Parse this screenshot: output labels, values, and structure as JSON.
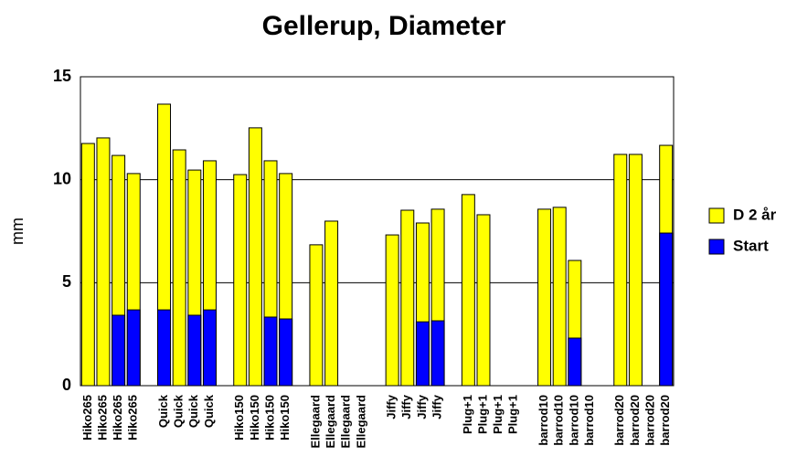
{
  "chart_data": {
    "type": "bar",
    "title": "Gellerup, Diameter",
    "y_label": "mm",
    "categories": [
      "Hiko265",
      "Hiko265",
      "Hiko265",
      "Hiko265",
      null,
      "Quick",
      "Quick",
      "Quick",
      "Quick",
      null,
      "Hiko150",
      "Hiko150",
      "Hiko150",
      "Hiko150",
      null,
      "Ellegaard",
      "Ellegaard",
      "Ellegaard",
      "Ellegaard",
      null,
      "Jiffy",
      "Jiffy",
      "Jiffy",
      "Jiffy",
      null,
      "Plug+1",
      "Plug+1",
      "Plug+1",
      "Plug+1",
      null,
      "barrod10",
      "barrod10",
      "barrod10",
      "barrod10",
      null,
      "barrod20",
      "barrod20",
      "barrod20",
      "barrod20"
    ],
    "series": [
      {
        "name": "D 2 år",
        "color": "#ffff00",
        "values": [
          11.76,
          12.03,
          11.18,
          10.3,
          null,
          13.67,
          11.45,
          10.47,
          10.92,
          null,
          10.25,
          12.52,
          10.92,
          10.3,
          null,
          6.84,
          7.99,
          null,
          null,
          null,
          7.32,
          8.52,
          7.9,
          8.57,
          null,
          9.28,
          8.3,
          null,
          null,
          null,
          8.57,
          8.66,
          6.08,
          null,
          null,
          11.23,
          11.23,
          null,
          11.67
        ]
      },
      {
        "name": "Start",
        "color": "#0000ff",
        "values": [
          null,
          null,
          3.42,
          3.68,
          null,
          3.68,
          null,
          3.42,
          3.68,
          null,
          null,
          null,
          3.33,
          3.24,
          null,
          null,
          null,
          null,
          null,
          null,
          null,
          null,
          3.1,
          3.15,
          null,
          null,
          null,
          null,
          null,
          null,
          null,
          null,
          2.31,
          null,
          null,
          null,
          null,
          null,
          7.41
        ]
      }
    ],
    "ylim": [
      0,
      15
    ],
    "yticks": [
      0,
      5,
      10,
      15
    ],
    "grid": true,
    "legend": "right",
    "overlap": true
  }
}
